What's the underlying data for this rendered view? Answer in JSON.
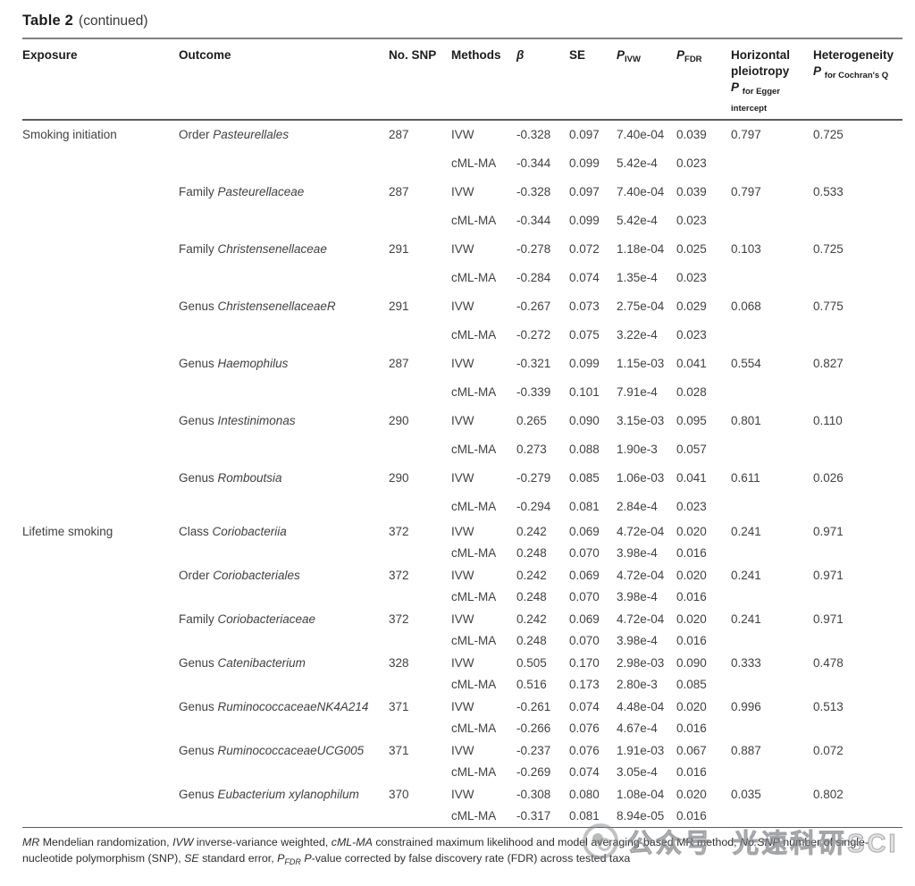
{
  "title": {
    "label": "Table 2",
    "continued": "(continued)"
  },
  "headers": {
    "exposure": "Exposure",
    "outcome": "Outcome",
    "no_snp": "No. SNP",
    "methods": "Methods",
    "beta": "β",
    "se": "SE",
    "p": "P",
    "ivw_sub": "IVW",
    "fdr_sub": "FDR",
    "horizontal_line1": "Horizontal",
    "horizontal_line2": "pleiotropy",
    "egger_sub_line1": "for Egger",
    "egger_sub_line2": "intercept",
    "heterogeneity": "Heterogeneity",
    "cochran_sub": "for Cochran's Q"
  },
  "table": {
    "sections": [
      {
        "exposure": "Smoking initiation",
        "density": "roomy",
        "outcomes": [
          {
            "prefix": "Order",
            "taxon": "Pasteurellales",
            "snp": "287",
            "methods": [
              {
                "method": "IVW",
                "beta": "-0.328",
                "se": "0.097",
                "p_ivw": "7.40e-04",
                "p_fdr": "0.039",
                "egger": "0.797",
                "cochran": "0.725"
              },
              {
                "method": "cML-MA",
                "beta": "-0.344",
                "se": "0.099",
                "p_ivw": "5.42e-4",
                "p_fdr": "0.023",
                "egger": "",
                "cochran": ""
              }
            ]
          },
          {
            "prefix": "Family",
            "taxon": "Pasteurellaceae",
            "snp": "287",
            "methods": [
              {
                "method": "IVW",
                "beta": "-0.328",
                "se": "0.097",
                "p_ivw": "7.40e-04",
                "p_fdr": "0.039",
                "egger": "0.797",
                "cochran": "0.533"
              },
              {
                "method": "cML-MA",
                "beta": "-0.344",
                "se": "0.099",
                "p_ivw": "5.42e-4",
                "p_fdr": "0.023",
                "egger": "",
                "cochran": ""
              }
            ]
          },
          {
            "prefix": "Family",
            "taxon": "Christensenellaceae",
            "snp": "291",
            "methods": [
              {
                "method": "IVW",
                "beta": "-0.278",
                "se": "0.072",
                "p_ivw": "1.18e-04",
                "p_fdr": "0.025",
                "egger": "0.103",
                "cochran": "0.725"
              },
              {
                "method": "cML-MA",
                "beta": "-0.284",
                "se": "0.074",
                "p_ivw": "1.35e-4",
                "p_fdr": "0.023",
                "egger": "",
                "cochran": ""
              }
            ]
          },
          {
            "prefix": "Genus",
            "taxon": "ChristensenellaceaeR",
            "snp": "291",
            "methods": [
              {
                "method": "IVW",
                "beta": "-0.267",
                "se": "0.073",
                "p_ivw": "2.75e-04",
                "p_fdr": "0.029",
                "egger": "0.068",
                "cochran": "0.775"
              },
              {
                "method": "cML-MA",
                "beta": "-0.272",
                "se": "0.075",
                "p_ivw": "3.22e-4",
                "p_fdr": "0.023",
                "egger": "",
                "cochran": ""
              }
            ]
          },
          {
            "prefix": "Genus",
            "taxon": "Haemophilus",
            "snp": "287",
            "methods": [
              {
                "method": "IVW",
                "beta": "-0.321",
                "se": "0.099",
                "p_ivw": "1.15e-03",
                "p_fdr": "0.041",
                "egger": "0.554",
                "cochran": "0.827"
              },
              {
                "method": "cML-MA",
                "beta": "-0.339",
                "se": "0.101",
                "p_ivw": "7.91e-4",
                "p_fdr": "0.028",
                "egger": "",
                "cochran": ""
              }
            ]
          },
          {
            "prefix": "Genus",
            "taxon": "Intestinimonas",
            "snp": "290",
            "methods": [
              {
                "method": "IVW",
                "beta": "0.265",
                "se": "0.090",
                "p_ivw": "3.15e-03",
                "p_fdr": "0.095",
                "egger": "0.801",
                "cochran": "0.110"
              },
              {
                "method": "cML-MA",
                "beta": "0.273",
                "se": "0.088",
                "p_ivw": "1.90e-3",
                "p_fdr": "0.057",
                "egger": "",
                "cochran": ""
              }
            ]
          },
          {
            "prefix": "Genus",
            "taxon": "Romboutsia",
            "snp": "290",
            "methods": [
              {
                "method": "IVW",
                "beta": "-0.279",
                "se": "0.085",
                "p_ivw": "1.06e-03",
                "p_fdr": "0.041",
                "egger": "0.611",
                "cochran": "0.026"
              },
              {
                "method": "cML-MA",
                "beta": "-0.294",
                "se": "0.081",
                "p_ivw": "2.84e-4",
                "p_fdr": "0.023",
                "egger": "",
                "cochran": ""
              }
            ]
          }
        ]
      },
      {
        "exposure": "Lifetime smoking",
        "density": "compact",
        "outcomes": [
          {
            "prefix": "Class",
            "taxon": "Coriobacteriia",
            "snp": "372",
            "methods": [
              {
                "method": "IVW",
                "beta": "0.242",
                "se": "0.069",
                "p_ivw": "4.72e-04",
                "p_fdr": "0.020",
                "egger": "0.241",
                "cochran": "0.971"
              },
              {
                "method": "cML-MA",
                "beta": "0.248",
                "se": "0.070",
                "p_ivw": "3.98e-4",
                "p_fdr": "0.016",
                "egger": "",
                "cochran": ""
              }
            ]
          },
          {
            "prefix": "Order",
            "taxon": "Coriobacteriales",
            "snp": "372",
            "methods": [
              {
                "method": "IVW",
                "beta": "0.242",
                "se": "0.069",
                "p_ivw": "4.72e-04",
                "p_fdr": "0.020",
                "egger": "0.241",
                "cochran": "0.971"
              },
              {
                "method": "cML-MA",
                "beta": "0.248",
                "se": "0.070",
                "p_ivw": "3.98e-4",
                "p_fdr": "0.016",
                "egger": "",
                "cochran": ""
              }
            ]
          },
          {
            "prefix": "Family",
            "taxon": "Coriobacteriaceae",
            "snp": "372",
            "methods": [
              {
                "method": "IVW",
                "beta": "0.242",
                "se": "0.069",
                "p_ivw": "4.72e-04",
                "p_fdr": "0.020",
                "egger": "0.241",
                "cochran": "0.971"
              },
              {
                "method": "cML-MA",
                "beta": "0.248",
                "se": "0.070",
                "p_ivw": "3.98e-4",
                "p_fdr": "0.016",
                "egger": "",
                "cochran": ""
              }
            ]
          },
          {
            "prefix": "Genus",
            "taxon": "Catenibacterium",
            "snp": "328",
            "methods": [
              {
                "method": "IVW",
                "beta": "0.505",
                "se": "0.170",
                "p_ivw": "2.98e-03",
                "p_fdr": "0.090",
                "egger": "0.333",
                "cochran": "0.478"
              },
              {
                "method": "cML-MA",
                "beta": "0.516",
                "se": "0.173",
                "p_ivw": "2.80e-3",
                "p_fdr": "0.085",
                "egger": "",
                "cochran": ""
              }
            ]
          },
          {
            "prefix": "Genus",
            "taxon": "RuminococcaceaeNK4A214",
            "snp": "371",
            "methods": [
              {
                "method": "IVW",
                "beta": "-0.261",
                "se": "0.074",
                "p_ivw": "4.48e-04",
                "p_fdr": "0.020",
                "egger": "0.996",
                "cochran": "0.513"
              },
              {
                "method": "cML-MA",
                "beta": "-0.266",
                "se": "0.076",
                "p_ivw": "4.67e-4",
                "p_fdr": "0.016",
                "egger": "",
                "cochran": ""
              }
            ]
          },
          {
            "prefix": "Genus",
            "taxon": "RuminococcaceaeUCG005",
            "snp": "371",
            "methods": [
              {
                "method": "IVW",
                "beta": "-0.237",
                "se": "0.076",
                "p_ivw": "1.91e-03",
                "p_fdr": "0.067",
                "egger": "0.887",
                "cochran": "0.072"
              },
              {
                "method": "cML-MA",
                "beta": "-0.269",
                "se": "0.074",
                "p_ivw": "3.05e-4",
                "p_fdr": "0.016",
                "egger": "",
                "cochran": ""
              }
            ]
          },
          {
            "prefix": "Genus",
            "taxon": "Eubacterium xylanophilum",
            "snp": "370",
            "methods": [
              {
                "method": "IVW",
                "beta": "-0.308",
                "se": "0.080",
                "p_ivw": "1.08e-04",
                "p_fdr": "0.020",
                "egger": "0.035",
                "cochran": "0.802"
              },
              {
                "method": "cML-MA",
                "beta": "-0.317",
                "se": "0.081",
                "p_ivw": "8.94e-05",
                "p_fdr": "0.016",
                "egger": "",
                "cochran": ""
              }
            ]
          }
        ]
      }
    ]
  },
  "footnote": {
    "segments": [
      {
        "t": "MR",
        "i": true
      },
      {
        "t": " Mendelian randomization, "
      },
      {
        "t": "IVW",
        "i": true
      },
      {
        "t": " inverse-variance weighted, "
      },
      {
        "t": "cML-MA",
        "i": true
      },
      {
        "t": " constrained maximum likelihood and model averaging-based MR method, "
      },
      {
        "t": "No.SNP",
        "i": true
      },
      {
        "t": " number of single-nucleotide polymorphism (SNP), "
      },
      {
        "t": "SE",
        "i": true
      },
      {
        "t": " standard error, "
      },
      {
        "t": "P",
        "i": true
      },
      {
        "t": "FDR",
        "sub": true
      },
      {
        "t": " "
      },
      {
        "t": "P",
        "i": true
      },
      {
        "t": "-value corrected by false discovery rate (FDR) across tested taxa"
      }
    ]
  },
  "watermark": {
    "icon": "aperture-logo",
    "part1": "公众号",
    "part2": "光速科研SCI"
  }
}
